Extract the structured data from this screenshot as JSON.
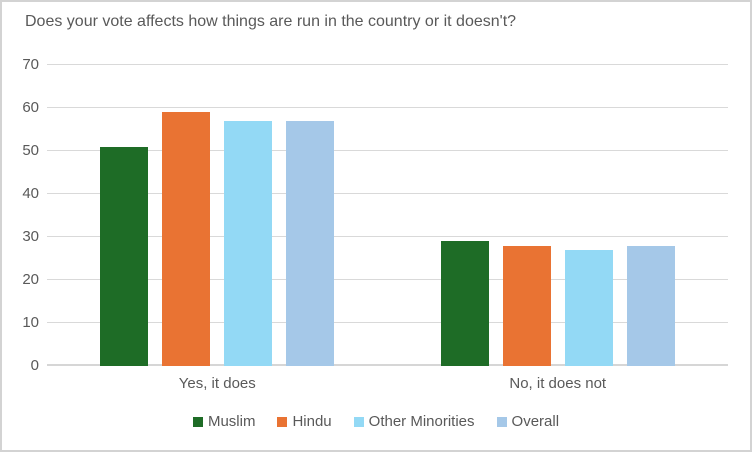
{
  "chart_data": {
    "type": "bar",
    "title": "Does your vote affects how things are run in the country or it doesn't?",
    "categories": [
      "Yes, it does",
      "No, it does not"
    ],
    "series": [
      {
        "name": "Muslim",
        "color": "#1e6c26",
        "values": [
          51,
          29
        ]
      },
      {
        "name": "Hindu",
        "color": "#e97333",
        "values": [
          59,
          28
        ]
      },
      {
        "name": "Other Minorities",
        "color": "#93d9f5",
        "values": [
          57,
          27
        ]
      },
      {
        "name": "Overall",
        "color": "#a5c8e8",
        "values": [
          57,
          28
        ]
      }
    ],
    "xlabel": "",
    "ylabel": "",
    "ylim": [
      0,
      70
    ],
    "yticks": [
      0,
      10,
      20,
      30,
      40,
      50,
      60,
      70
    ],
    "grid": true,
    "legend_position": "bottom"
  },
  "style": {
    "text_color": "#595959",
    "grid_color": "#d9d9d9",
    "axis_color": "#d6d6d6",
    "border_color": "#d3d3d3",
    "background": "#ffffff"
  }
}
